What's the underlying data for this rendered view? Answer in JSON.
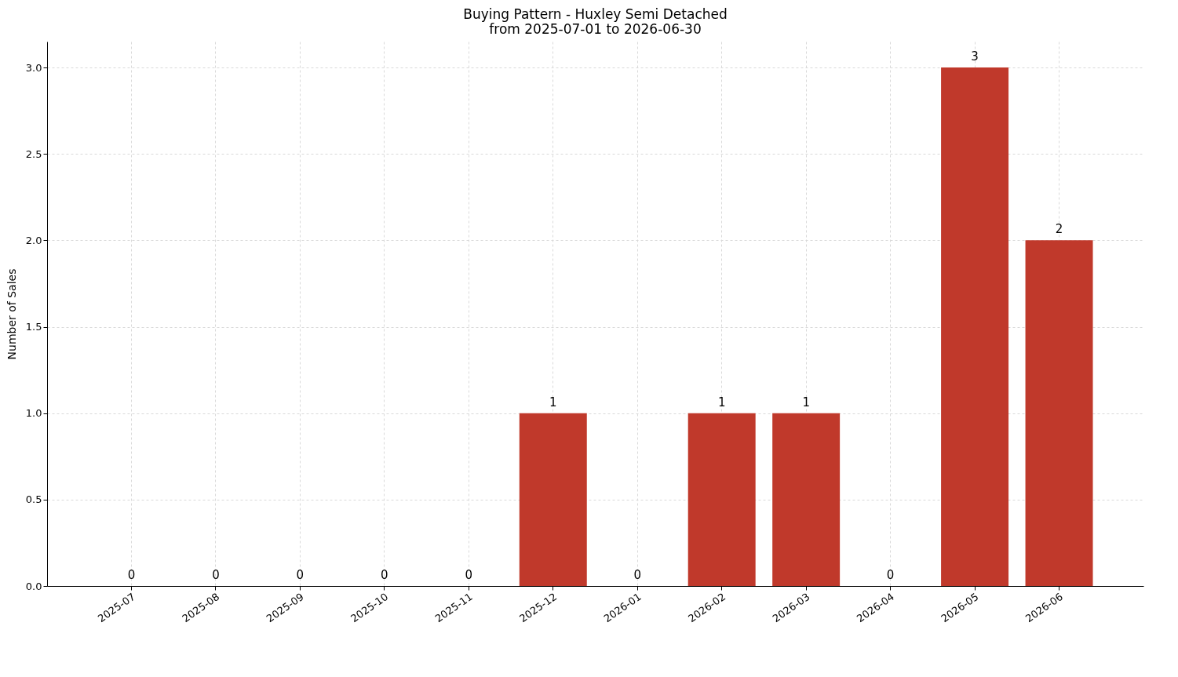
{
  "chart_data": {
    "type": "bar",
    "title": "Buying Pattern - Huxley Semi Detached",
    "subtitle": "from 2025-07-01 to 2026-06-30",
    "ylabel": "Number of Sales",
    "categories": [
      "2025-07",
      "2025-08",
      "2025-09",
      "2025-10",
      "2025-11",
      "2025-12",
      "2026-01",
      "2026-02",
      "2026-03",
      "2026-04",
      "2026-05",
      "2026-06"
    ],
    "values": [
      0,
      0,
      0,
      0,
      0,
      1,
      0,
      1,
      1,
      0,
      3,
      2
    ],
    "color": "#c0392b",
    "ylim": [
      0,
      3.15
    ],
    "yticks": [
      {
        "value": 0,
        "label": "0.0"
      },
      {
        "value": 0.5,
        "label": "0.5"
      },
      {
        "value": 1,
        "label": "1.0"
      },
      {
        "value": 1.5,
        "label": "1.5"
      },
      {
        "value": 2,
        "label": "2.0"
      },
      {
        "value": 2.5,
        "label": "2.5"
      },
      {
        "value": 3,
        "label": "3.0"
      }
    ],
    "grid": true,
    "data_labels": true
  }
}
